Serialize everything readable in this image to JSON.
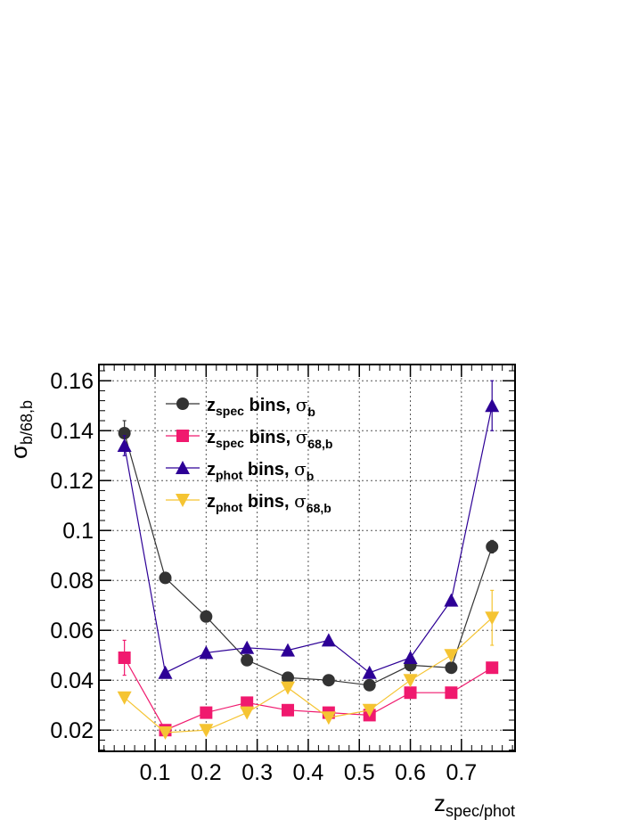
{
  "chart_data": {
    "type": "scatter",
    "title": "",
    "xlabel": {
      "main": "z",
      "sub": "spec/phot"
    },
    "ylabel": {
      "main": "σ",
      "sub": "b/68,b"
    },
    "xlim": [
      -0.01,
      0.805
    ],
    "ylim": [
      0.0115,
      0.1665
    ],
    "xticks": [
      0.1,
      0.2,
      0.3,
      0.4,
      0.5,
      0.6,
      0.7
    ],
    "xtick_labels": [
      "0.1",
      "0.2",
      "0.3",
      "0.4",
      "0.5",
      "0.6",
      "0.7"
    ],
    "yticks": [
      0.02,
      0.04,
      0.06,
      0.08,
      0.1,
      0.12,
      0.14,
      0.16
    ],
    "ytick_labels": [
      "0.02",
      "0.04",
      "0.06",
      "0.08",
      "0.1",
      "0.12",
      "0.14",
      "0.16"
    ],
    "grid": true,
    "legend_position": "top-left",
    "x": [
      0.04,
      0.12,
      0.2,
      0.28,
      0.36,
      0.44,
      0.52,
      0.6,
      0.68,
      0.76
    ],
    "series": [
      {
        "legend": {
          "var": "z",
          "varsub": "spec",
          "mid": " bins, ",
          "sym": "σ",
          "symsub": "b"
        },
        "marker": "circle",
        "color": "#333333",
        "y": [
          0.139,
          0.081,
          0.0655,
          0.048,
          0.041,
          0.04,
          0.038,
          0.046,
          0.045,
          0.0935
        ],
        "err": [
          0.005,
          0.0015,
          0.001,
          0.001,
          0.001,
          0.001,
          0.001,
          0.001,
          0.001,
          0.0025
        ]
      },
      {
        "legend": {
          "var": "z",
          "varsub": "spec",
          "mid": " bins, ",
          "sym": "σ",
          "symsub": "68,b"
        },
        "marker": "square",
        "color": "#f0196e",
        "y": [
          0.049,
          0.02,
          0.027,
          0.031,
          0.028,
          0.027,
          0.026,
          0.035,
          0.035,
          0.045
        ],
        "err": [
          0.007,
          0.001,
          0.001,
          0.001,
          0.001,
          0.001,
          0.001,
          0.001,
          0.001,
          0.002
        ]
      },
      {
        "legend": {
          "var": "z",
          "varsub": "phot",
          "mid": " bins, ",
          "sym": "σ",
          "symsub": "b"
        },
        "marker": "triangle-up",
        "color": "#2d0096",
        "y": [
          0.134,
          0.043,
          0.051,
          0.053,
          0.052,
          0.056,
          0.043,
          0.049,
          0.072,
          0.15
        ],
        "err": [
          0.004,
          0.001,
          0.001,
          0.001,
          0.001,
          0.001,
          0.001,
          0.001,
          0.001,
          0.01
        ]
      },
      {
        "legend": {
          "var": "z",
          "varsub": "phot",
          "mid": " bins, ",
          "sym": "σ",
          "symsub": "68,b"
        },
        "marker": "triangle-down",
        "color": "#f5c432",
        "y": [
          0.033,
          0.019,
          0.02,
          0.027,
          0.037,
          0.025,
          0.028,
          0.04,
          0.05,
          0.065
        ],
        "err": [
          0.001,
          0.001,
          0.001,
          0.001,
          0.001,
          0.001,
          0.001,
          0.001,
          0.001,
          0.011
        ]
      }
    ]
  }
}
